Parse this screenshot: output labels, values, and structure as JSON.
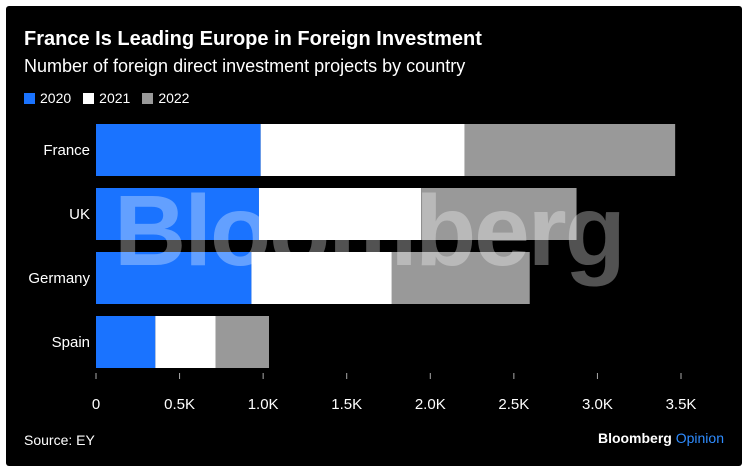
{
  "chart_data": {
    "type": "bar",
    "orientation": "horizontal",
    "stacked": true,
    "title": "France Is Leading Europe in Foreign Investment",
    "subtitle": "Number of foreign direct investment projects by country",
    "categories": [
      "France",
      "UK",
      "Germany",
      "Spain"
    ],
    "series": [
      {
        "name": "2020",
        "color": "#1a73ff",
        "values": [
          985,
          975,
          930,
          355
        ]
      },
      {
        "name": "2021",
        "color": "#ffffff",
        "values": [
          1220,
          970,
          840,
          360
        ]
      },
      {
        "name": "2022",
        "color": "#999999",
        "values": [
          1260,
          930,
          825,
          320
        ]
      }
    ],
    "xlim": [
      0,
      3500
    ],
    "xticks": [
      {
        "value": 0,
        "label": "0"
      },
      {
        "value": 500,
        "label": "0.5K"
      },
      {
        "value": 1000,
        "label": "1.0K"
      },
      {
        "value": 1500,
        "label": "1.5K"
      },
      {
        "value": 2000,
        "label": "2.0K"
      },
      {
        "value": 2500,
        "label": "2.5K"
      },
      {
        "value": 3000,
        "label": "3.0K"
      },
      {
        "value": 3500,
        "label": "3.5K"
      }
    ],
    "legend_position": "top-left",
    "grid": false
  },
  "source": "Source: EY",
  "brand": {
    "name": "Bloomberg",
    "suffix": "Opinion"
  },
  "watermark": "Bloomberg"
}
